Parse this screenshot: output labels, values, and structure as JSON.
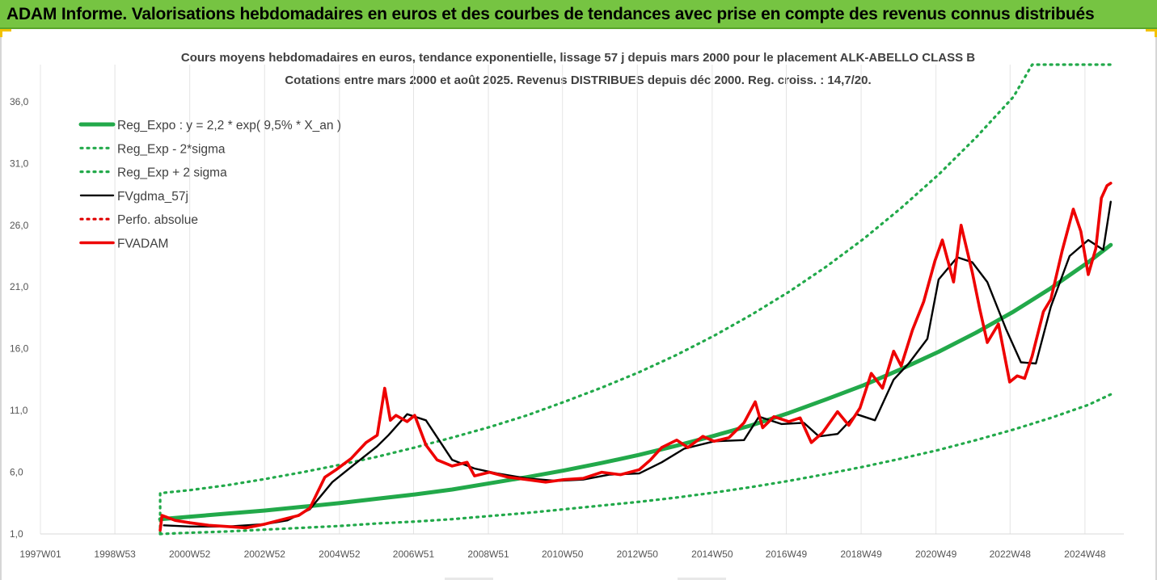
{
  "banner": {
    "title": "ADAM Informe. Valorisations hebdomadaires en euros et des courbes de tendances avec prise en compte des revenus connus distribués",
    "color": "#76c442"
  },
  "chart_data": {
    "type": "line",
    "title": "Cours moyens hebdomadaires en euros, tendance exponentielle, lissage 57 j depuis mars 2000 pour le placement ALK-ABELLO CLASS B",
    "subtitle": "Cotations entre mars 2000 et août 2025. Revenus DISTRIBUES depuis déc 2000. Reg. croiss. : 14,7/20.",
    "x_tick_labels": [
      "1997W01",
      "1998W53",
      "2000W52",
      "2002W52",
      "2004W52",
      "2006W51",
      "2008W51",
      "2010W50",
      "2012W50",
      "2014W50",
      "2016W49",
      "2018W49",
      "2020W49",
      "2022W48",
      "2024W48"
    ],
    "x_tick_years": [
      1997.0,
      1998.99,
      2000.99,
      2002.99,
      2004.99,
      2006.97,
      2008.97,
      2010.95,
      2012.95,
      2014.95,
      2016.93,
      2018.93,
      2020.93,
      2022.91,
      2024.91
    ],
    "xlim": [
      1997.0,
      2025.95
    ],
    "y_tick_labels": [
      "1,0",
      "6,0",
      "11,0",
      "16,0",
      "21,0",
      "26,0",
      "31,0",
      "36,0"
    ],
    "y_ticks": [
      1,
      6,
      11,
      16,
      21,
      26,
      31,
      36
    ],
    "ylim": [
      1,
      39
    ],
    "grid": {
      "vertical": true,
      "horizontal": false
    },
    "legend_position": "top-left",
    "series": [
      {
        "name": "Reg_Expo : y = 2,2 * exp( 9,5% *  X_an )",
        "style": "solid",
        "color": "#22a94a",
        "x": [
          2000.2,
          2001,
          2002,
          2003,
          2004,
          2005,
          2006,
          2007,
          2008,
          2009,
          2010,
          2011,
          2012,
          2013,
          2014,
          2015,
          2016,
          2017,
          2018,
          2019,
          2020,
          2021,
          2022,
          2023,
          2024,
          2025,
          2025.6
        ],
        "y": [
          2.2,
          2.4,
          2.65,
          2.9,
          3.2,
          3.5,
          3.85,
          4.2,
          4.6,
          5.1,
          5.6,
          6.15,
          6.75,
          7.4,
          8.15,
          8.95,
          9.8,
          10.8,
          11.9,
          13.05,
          14.35,
          15.75,
          17.3,
          19.0,
          20.9,
          23.0,
          24.4
        ]
      },
      {
        "name": "Reg_Exp - 2*sigma",
        "style": "dotted",
        "color": "#22a94a",
        "x": [
          2000.2,
          2001,
          2002,
          2003,
          2004,
          2005,
          2006,
          2007,
          2008,
          2009,
          2010,
          2011,
          2012,
          2013,
          2014,
          2015,
          2016,
          2017,
          2018,
          2019,
          2020,
          2021,
          2022,
          2023,
          2024,
          2025,
          2025.6
        ],
        "y": [
          1.0,
          1.1,
          1.2,
          1.35,
          1.5,
          1.65,
          1.85,
          2.0,
          2.2,
          2.45,
          2.7,
          3.0,
          3.3,
          3.6,
          3.95,
          4.35,
          4.8,
          5.3,
          5.85,
          6.45,
          7.1,
          7.8,
          8.6,
          9.45,
          10.4,
          11.45,
          12.3
        ]
      },
      {
        "name": "Reg_Exp + 2 sigma",
        "style": "dotted",
        "color": "#22a94a",
        "x": [
          2000.2,
          2000.2,
          2001,
          2002,
          2003,
          2004,
          2005,
          2006,
          2007,
          2008,
          2009,
          2010,
          2011,
          2012,
          2013,
          2014,
          2015,
          2016,
          2017,
          2018,
          2019,
          2020,
          2021,
          2022,
          2023,
          2023.5,
          2025.6
        ],
        "y": [
          1.0,
          4.3,
          4.55,
          4.95,
          5.45,
          6.0,
          6.6,
          7.25,
          8.0,
          8.8,
          9.65,
          10.6,
          11.7,
          12.85,
          14.1,
          15.5,
          17.05,
          18.75,
          20.6,
          22.65,
          24.9,
          27.4,
          30.1,
          33.1,
          36.4,
          39,
          39
        ]
      },
      {
        "name": "FVgdma_57j",
        "style": "solid",
        "color": "#000000",
        "x": [
          2000.3,
          2001,
          2002,
          2003,
          2003.6,
          2004.2,
          2004.8,
          2005.5,
          2006.0,
          2006.3,
          2006.8,
          2007.3,
          2008.0,
          2008.6,
          2009.2,
          2010.0,
          2010.8,
          2011.5,
          2012.2,
          2013.0,
          2013.6,
          2014.2,
          2015.0,
          2015.8,
          2016.2,
          2016.8,
          2017.4,
          2017.8,
          2018.3,
          2018.8,
          2019.3,
          2019.8,
          2020.2,
          2020.7,
          2021.0,
          2021.5,
          2021.9,
          2022.3,
          2022.8,
          2023.2,
          2023.6,
          2024.0,
          2024.5,
          2025.0,
          2025.4,
          2025.6
        ],
        "y": [
          1.7,
          1.6,
          1.6,
          1.8,
          2.1,
          3.0,
          5.2,
          6.9,
          8.1,
          9.0,
          10.7,
          10.2,
          7.0,
          6.3,
          5.9,
          5.5,
          5.3,
          5.4,
          5.8,
          5.9,
          6.8,
          7.9,
          8.5,
          8.6,
          10.5,
          9.9,
          10.0,
          8.9,
          9.1,
          10.7,
          10.2,
          13.5,
          14.8,
          16.8,
          21.6,
          23.4,
          23.0,
          21.4,
          17.6,
          14.9,
          14.8,
          19.4,
          23.5,
          24.8,
          24.0,
          27.9
        ]
      },
      {
        "name": "Perfo. absolue",
        "style": "dotted",
        "color": "#e00000",
        "x": [],
        "y": []
      },
      {
        "name": "FVADAM",
        "style": "solid",
        "color": "#ee0000",
        "x": [
          2000.2,
          2000.25,
          2000.6,
          2001.0,
          2001.5,
          2002.0,
          2002.5,
          2003.0,
          2003.5,
          2003.9,
          2004.2,
          2004.6,
          2004.9,
          2005.3,
          2005.7,
          2006.0,
          2006.2,
          2006.35,
          2006.5,
          2006.8,
          2007.0,
          2007.3,
          2007.6,
          2008.0,
          2008.4,
          2008.6,
          2009.0,
          2009.5,
          2010.0,
          2010.5,
          2011.0,
          2011.5,
          2012.0,
          2012.5,
          2013.0,
          2013.3,
          2013.6,
          2014.0,
          2014.3,
          2014.7,
          2015.0,
          2015.4,
          2015.8,
          2016.1,
          2016.3,
          2016.6,
          2017.0,
          2017.3,
          2017.6,
          2017.9,
          2018.3,
          2018.6,
          2018.9,
          2019.2,
          2019.5,
          2019.8,
          2020.0,
          2020.3,
          2020.6,
          2020.9,
          2021.1,
          2021.4,
          2021.6,
          2021.9,
          2022.1,
          2022.3,
          2022.6,
          2022.9,
          2023.1,
          2023.3,
          2023.5,
          2023.8,
          2024.0,
          2024.3,
          2024.6,
          2024.8,
          2025.0,
          2025.2,
          2025.35,
          2025.5,
          2025.6
        ],
        "y": [
          1.3,
          2.5,
          2.1,
          1.9,
          1.7,
          1.6,
          1.5,
          1.8,
          2.2,
          2.5,
          3.1,
          5.6,
          6.2,
          7.1,
          8.4,
          9.0,
          12.8,
          10.2,
          10.6,
          10.1,
          10.6,
          8.2,
          7.0,
          6.5,
          6.8,
          5.7,
          6.0,
          5.6,
          5.4,
          5.2,
          5.4,
          5.5,
          6.0,
          5.8,
          6.2,
          7.0,
          8.0,
          8.6,
          8.0,
          8.9,
          8.5,
          8.8,
          10.0,
          11.7,
          9.6,
          10.5,
          10.1,
          10.4,
          8.4,
          9.2,
          10.9,
          9.8,
          11.2,
          14.0,
          12.8,
          15.8,
          14.6,
          17.5,
          19.8,
          23.1,
          24.8,
          21.4,
          26.0,
          22.2,
          19.2,
          16.5,
          18.0,
          13.3,
          13.8,
          13.6,
          15.4,
          19.0,
          20.0,
          23.9,
          27.3,
          25.5,
          22.0,
          24.1,
          28.2,
          29.2,
          29.4
        ]
      }
    ]
  }
}
